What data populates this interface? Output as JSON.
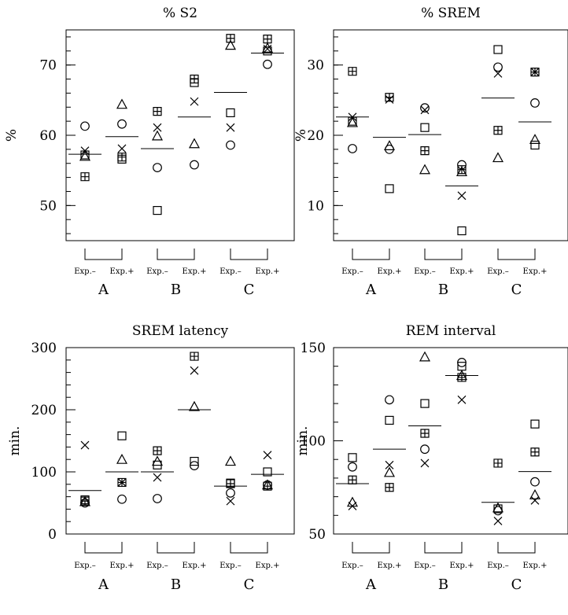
{
  "marker_legend": [
    "square",
    "circle",
    "triangle",
    "cross",
    "boxplus"
  ],
  "chart_data": [
    {
      "type": "scatter",
      "title": "% S2",
      "ylabel": "%",
      "ylim": [
        45,
        75
      ],
      "yticks": [
        50,
        60,
        70
      ],
      "condition_labels": [
        "Exp.–",
        "Exp.+"
      ],
      "groups": [
        {
          "label": "A",
          "columns": [
            {
              "mean": 57.3,
              "points": {
                "square": 57.2,
                "circle": 61.3,
                "triangle": 57.0,
                "cross": 57.8,
                "boxplus": 54.1
              }
            },
            {
              "mean": 59.8,
              "points": {
                "square": 56.6,
                "circle": 61.6,
                "triangle": 64.4,
                "cross": 58.1,
                "boxplus": 56.9
              }
            }
          ]
        },
        {
          "label": "B",
          "columns": [
            {
              "mean": 58.1,
              "points": {
                "square": 49.3,
                "circle": 55.4,
                "triangle": 59.9,
                "cross": 61.1,
                "boxplus": 63.4
              }
            },
            {
              "mean": 62.6,
              "points": {
                "square": 67.5,
                "circle": 55.8,
                "triangle": 58.8,
                "cross": 64.8,
                "boxplus": 68.0
              }
            }
          ]
        },
        {
          "label": "C",
          "columns": [
            {
              "mean": 66.1,
              "points": {
                "square": 63.2,
                "circle": 58.6,
                "triangle": 72.8,
                "cross": 61.1,
                "boxplus": 73.8
              }
            },
            {
              "mean": 71.7,
              "points": {
                "square": 72.0,
                "circle": 70.1,
                "triangle": 72.4,
                "cross": 72.3,
                "boxplus": 73.7
              }
            }
          ]
        }
      ]
    },
    {
      "type": "scatter",
      "title": "% SREM",
      "ylabel": "%",
      "ylim": [
        5,
        35
      ],
      "yticks": [
        10,
        20,
        30
      ],
      "condition_labels": [
        "Exp.–",
        "Exp.+"
      ],
      "groups": [
        {
          "label": "A",
          "columns": [
            {
              "mean": 22.6,
              "points": {
                "square": 22.0,
                "circle": 18.1,
                "triangle": 21.8,
                "cross": 22.6,
                "boxplus": 29.1
              }
            },
            {
              "mean": 19.7,
              "points": {
                "square": 12.4,
                "circle": 18.0,
                "triangle": 18.5,
                "cross": 25.1,
                "boxplus": 25.4
              }
            }
          ]
        },
        {
          "label": "B",
          "columns": [
            {
              "mean": 20.1,
              "points": {
                "square": 21.1,
                "circle": 23.9,
                "triangle": 15.1,
                "cross": 23.6,
                "boxplus": 17.8
              }
            },
            {
              "mean": 12.8,
              "points": {
                "square": 6.4,
                "circle": 15.8,
                "triangle": 14.8,
                "cross": 11.4,
                "boxplus": 15.1
              }
            }
          ]
        },
        {
          "label": "C",
          "columns": [
            {
              "mean": 25.3,
              "points": {
                "square": 32.2,
                "circle": 29.7,
                "triangle": 16.8,
                "cross": 28.8,
                "boxplus": 20.7
              }
            },
            {
              "mean": 21.9,
              "points": {
                "square": 18.6,
                "circle": 24.6,
                "triangle": 19.4,
                "cross": 29.0,
                "boxplus": 29.0
              }
            }
          ]
        }
      ]
    },
    {
      "type": "scatter",
      "title": "SREM latency",
      "ylabel": "min.",
      "ylim": [
        0,
        300
      ],
      "yticks": [
        0,
        100,
        200,
        300
      ],
      "condition_labels": [
        "Exp.–",
        "Exp.+"
      ],
      "groups": [
        {
          "label": "A",
          "columns": [
            {
              "mean": 70,
              "points": {
                "square": 55,
                "circle": 50,
                "triangle": 52,
                "cross": 143,
                "boxplus": 53
              }
            },
            {
              "mean": 100,
              "points": {
                "square": 158,
                "circle": 56,
                "triangle": 120,
                "cross": 83,
                "boxplus": 83
              }
            }
          ]
        },
        {
          "label": "B",
          "columns": [
            {
              "mean": 100,
              "points": {
                "square": 111,
                "circle": 57,
                "triangle": 117,
                "cross": 91,
                "boxplus": 134
              }
            },
            {
              "mean": 200,
              "points": {
                "square": 117,
                "circle": 110,
                "triangle": 205,
                "cross": 263,
                "boxplus": 286
              }
            }
          ]
        },
        {
          "label": "C",
          "columns": [
            {
              "mean": 77,
              "points": {
                "square": 82,
                "circle": 66,
                "triangle": 117,
                "cross": 53,
                "boxplus": 81
              }
            },
            {
              "mean": 96,
              "points": {
                "square": 100,
                "circle": 79,
                "triangle": 79,
                "cross": 127,
                "boxplus": 77
              }
            }
          ]
        }
      ]
    },
    {
      "type": "scatter",
      "title": "REM interval",
      "ylabel": "min.",
      "ylim": [
        50,
        150
      ],
      "yticks": [
        50,
        100,
        150
      ],
      "condition_labels": [
        "Exp.–",
        "Exp.+"
      ],
      "groups": [
        {
          "label": "A",
          "columns": [
            {
              "mean": 77,
              "points": {
                "square": 91,
                "circle": 86,
                "triangle": 67,
                "cross": 65,
                "boxplus": 79
              }
            },
            {
              "mean": 95.5,
              "points": {
                "square": 111,
                "circle": 122,
                "triangle": 83,
                "cross": 87,
                "boxplus": 75
              }
            }
          ]
        },
        {
          "label": "B",
          "columns": [
            {
              "mean": 108,
              "points": {
                "square": 120,
                "circle": 95.5,
                "triangle": 145,
                "cross": 88,
                "boxplus": 104
              }
            },
            {
              "mean": 135,
              "points": {
                "square": 140,
                "circle": 142,
                "triangle": 135,
                "cross": 122,
                "boxplus": 134
              }
            }
          ]
        },
        {
          "label": "C",
          "columns": [
            {
              "mean": 67,
              "points": {
                "square": 63.5,
                "circle": 62.5,
                "triangle": 64,
                "cross": 57,
                "boxplus": 88
              }
            },
            {
              "mean": 83.5,
              "points": {
                "square": 109,
                "circle": 78,
                "triangle": 71,
                "cross": 68,
                "boxplus": 94
              }
            }
          ]
        }
      ]
    }
  ]
}
